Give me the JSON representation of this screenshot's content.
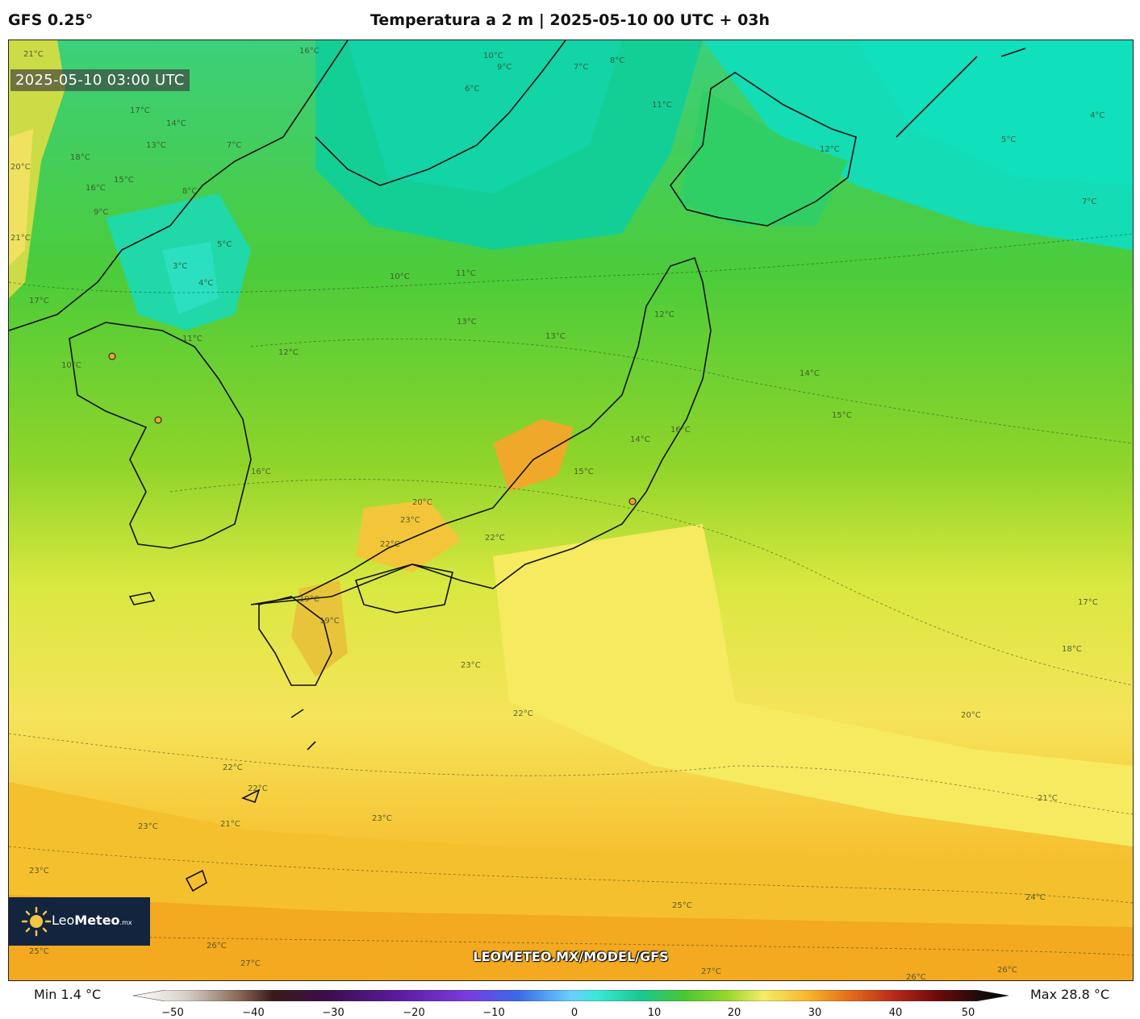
{
  "header": {
    "model": "GFS 0.25°",
    "title": "Temperatura a 2 m | 2025-05-10 00 UTC + 03h"
  },
  "map": {
    "timestamp": "2025-05-10 03:00 UTC",
    "watermark": "LEOMETEO.MX/MODEL/GFS",
    "logo": {
      "name_regular": "Leo",
      "name_bold": "Meteo",
      "suffix": ".mx"
    },
    "contour_labels": [
      "21°C",
      "16°C",
      "10°C",
      "9°C",
      "8°C",
      "7°C",
      "6°C",
      "11°C",
      "4°C",
      "5°C",
      "12°C",
      "7°C",
      "17°C",
      "14°C",
      "13°C",
      "18°C",
      "16°C",
      "15°C",
      "8°C",
      "7°C",
      "9°C",
      "20°C",
      "21°C",
      "3°C",
      "5°C",
      "4°C",
      "10°C",
      "11°C",
      "13°C",
      "12°C",
      "14°C",
      "15°C",
      "16°C",
      "17°C",
      "18°C",
      "20°C",
      "21°C",
      "23°C",
      "22°C",
      "22°C",
      "22°C",
      "23°C",
      "21°C",
      "23°C",
      "23°C",
      "24°C",
      "25°C",
      "26°C",
      "27°C",
      "27°C",
      "26°C",
      "25°C",
      "26°C",
      "17°C",
      "12°C",
      "11°C",
      "10°C",
      "13°C",
      "16°C",
      "19°C",
      "22°C",
      "23°C",
      "20°C",
      "22°C",
      "14°C",
      "15°C",
      "19°C"
    ],
    "colors": {
      "cold": "#10d6b0",
      "cool": "#3ad080",
      "mild": "#5ccc2a",
      "warm_green": "#9bd62a",
      "yellow": "#f4ec6a",
      "orange": "#f6c232",
      "hot": "#f4a21c",
      "coast": "#111111"
    }
  },
  "colorbar": {
    "min_label": "Min 1.4 °C",
    "max_label": "Max 28.8 °C",
    "ticks": [
      "−50",
      "−40",
      "−30",
      "−20",
      "−10",
      "0",
      "10",
      "20",
      "30",
      "40",
      "50"
    ]
  }
}
